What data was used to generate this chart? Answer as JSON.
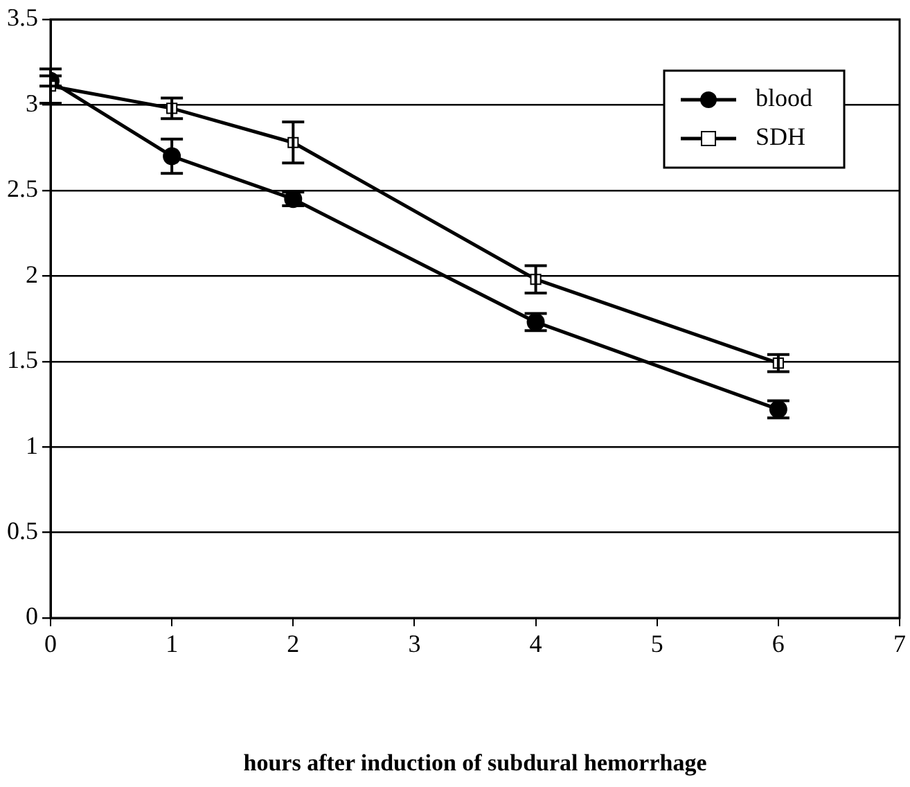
{
  "chart_data": {
    "type": "line",
    "xlabel": "hours after induction of subdural hemorrhage",
    "x": [
      0,
      1,
      2,
      4,
      6
    ],
    "series": [
      {
        "name": "blood",
        "color": "#000000",
        "marker": "circle",
        "values": [
          3.14,
          2.7,
          2.45,
          1.73,
          1.22
        ],
        "errors": [
          0.03,
          0.1,
          0.04,
          0.05,
          0.05
        ]
      },
      {
        "name": "SDH",
        "color": "#000000",
        "marker": "square",
        "values": [
          3.11,
          2.98,
          2.78,
          1.98,
          1.49
        ],
        "errors": [
          0.1,
          0.06,
          0.12,
          0.08,
          0.05
        ]
      }
    ],
    "xlim": [
      0,
      7
    ],
    "xticks": [
      0,
      1,
      2,
      3,
      4,
      5,
      6,
      7
    ],
    "ylim": [
      0,
      3.5
    ],
    "yticks": [
      0,
      0.5,
      1,
      1.5,
      2,
      2.5,
      3,
      3.5
    ],
    "grid": "y",
    "legend": "top right",
    "line_style": "solid"
  }
}
